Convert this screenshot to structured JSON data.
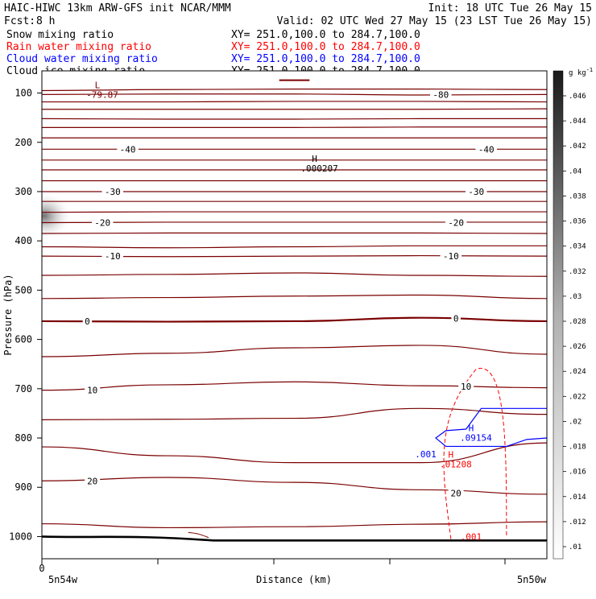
{
  "header": {
    "left_line1": "HAIC-HIWC 13km ARW-GFS init   NCAR/MMM",
    "right_line1": "Init: 18 UTC Tue 26 May 15",
    "fcst_label": "Fcst:",
    "fcst_value": "8 h",
    "valid_line": "Valid: 02 UTC Wed 27 May 15 (23 LST Tue 26 May 15)"
  },
  "fields": [
    {
      "name": "Snow mixing ratio",
      "xy": "XY= 251.0,100.0 to 284.7,100.0",
      "color": "#000000"
    },
    {
      "name": "Rain water mixing ratio",
      "xy": "XY= 251.0,100.0 to 284.7,100.0",
      "color": "#ff0000"
    },
    {
      "name": "Cloud water mixing ratio",
      "xy": "XY= 251.0,100.0 to 284.7,100.0",
      "color": "#0000ff"
    },
    {
      "name": "Cloud ice mixing ratio",
      "xy": "XY= 251.0,100.0 to 284.7,100.0",
      "color": "#000000"
    }
  ],
  "colorbar": {
    "unit_label": "g kg",
    "unit_exponent": "-1",
    "ticks": [
      ".046",
      ".044",
      ".042",
      ".04",
      ".038",
      ".036",
      ".034",
      ".032",
      ".03",
      ".028",
      ".026",
      ".024",
      ".022",
      ".02",
      ".018",
      ".016",
      ".014",
      ".012",
      ".01"
    ]
  },
  "colors": {
    "temperature_contour": "#7a0000",
    "rain": "#ff0000",
    "cloud_water": "#0000ff",
    "terrain": "#000000"
  },
  "chart_data": {
    "type": "contour",
    "ylabel": "Pressure (hPa)",
    "xlabel": "Distance (km)",
    "x_left_label": "5n54w",
    "x_right_label": "5n50w",
    "x_zero_label": "0",
    "ylim": [
      1045,
      55
    ],
    "y_scale": "linear",
    "y_ticks": [
      100,
      200,
      300,
      400,
      500,
      600,
      700,
      800,
      900,
      1000
    ],
    "isotherm_labels": [
      {
        "text": "-40",
        "p": 214,
        "x": 0.17
      },
      {
        "text": "-40",
        "p": 214,
        "x": 0.88
      },
      {
        "text": "-30",
        "p": 300,
        "x": 0.14
      },
      {
        "text": "-30",
        "p": 300,
        "x": 0.86
      },
      {
        "text": "-20",
        "p": 363,
        "x": 0.12
      },
      {
        "text": "-20",
        "p": 363,
        "x": 0.82
      },
      {
        "text": "-10",
        "p": 431,
        "x": 0.14
      },
      {
        "text": "-10",
        "p": 431,
        "x": 0.81
      },
      {
        "text": "0",
        "p": 563,
        "x": 0.09
      },
      {
        "text": "0",
        "p": 557,
        "x": 0.82
      },
      {
        "text": "10",
        "p": 703,
        "x": 0.1
      },
      {
        "text": "10",
        "p": 695,
        "x": 0.84
      },
      {
        "text": "20",
        "p": 887,
        "x": 0.1
      },
      {
        "text": "20",
        "p": 912,
        "x": 0.82
      },
      {
        "text": "-80",
        "p": 103,
        "x": 0.79
      }
    ],
    "extrema": [
      {
        "letter": "L",
        "value": "-79.87",
        "p": 90,
        "x": 0.11,
        "color": "#7a0000"
      },
      {
        "letter": "H",
        "value": ".000207",
        "p": 240,
        "x": 0.54,
        "color": "#000000"
      },
      {
        "letter": "H",
        "value": ".09154",
        "p": 786,
        "x": 0.85,
        "color": "#0000ff"
      },
      {
        "letter": "H",
        "value": ".01208",
        "p": 840,
        "x": 0.81,
        "color": "#ff0000"
      }
    ],
    "contour_labels": [
      {
        "text": ".001",
        "p": 833,
        "x": 0.76,
        "color": "#0000ff"
      },
      {
        "text": ".001",
        "p": 1000,
        "x": 0.85,
        "color": "#ff0000"
      }
    ]
  }
}
